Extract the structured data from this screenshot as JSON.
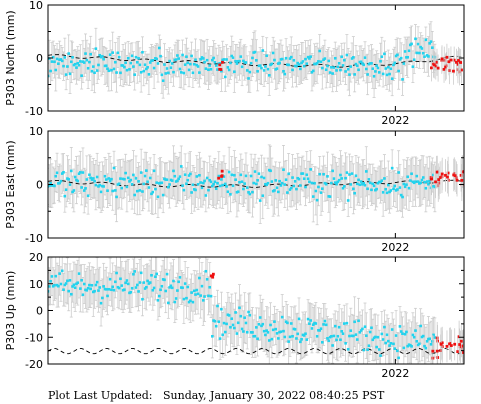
{
  "footer": {
    "label": "Plot Last Updated:",
    "timestamp": "Sunday, January 30, 2022 08:40:25 PST"
  },
  "colors": {
    "point": "#22d3ee",
    "recent_point": "#ee1111",
    "errorbar": "#cccccc",
    "model": "#000000",
    "frame": "#000000"
  },
  "chart_data": [
    {
      "type": "scatter",
      "ylabel": "P303 North (mm)",
      "ylim": [
        -10,
        10
      ],
      "yticks": [
        -10,
        0,
        10
      ],
      "x_label_tick": "2022",
      "series": [
        {
          "role": "daily",
          "style": "points-with-errorbars",
          "x_range": [
            0,
            0.93
          ],
          "y_mean": -1.2,
          "y_spread": 1.6,
          "level_shift": {
            "after_x": 0.86,
            "delta": 2.4
          },
          "errorbar_half": 3.2
        },
        {
          "role": "recent",
          "style": "points",
          "x_range": [
            0.92,
            1.0
          ],
          "y_mean": -1.0,
          "y_spread": 1.4
        },
        {
          "role": "model",
          "style": "dashed-line",
          "points": [
            [
              0,
              0.5
            ],
            [
              0.25,
              -0.5
            ],
            [
              0.5,
              -1.2
            ],
            [
              0.7,
              -1.5
            ],
            [
              0.85,
              -1.0
            ],
            [
              1.0,
              0.3
            ]
          ]
        }
      ]
    },
    {
      "type": "scatter",
      "ylabel": "P303 East (mm)",
      "ylim": [
        -10,
        10
      ],
      "yticks": [
        -10,
        0,
        10
      ],
      "x_label_tick": "2022",
      "series": [
        {
          "role": "daily",
          "style": "points-with-errorbars",
          "x_range": [
            0,
            0.93
          ],
          "y_mean": 0.3,
          "y_spread": 1.8,
          "errorbar_half": 3.8
        },
        {
          "role": "recent",
          "style": "points",
          "x_range": [
            0.92,
            1.0
          ],
          "y_mean": 1.6,
          "y_spread": 1.0
        },
        {
          "role": "model",
          "style": "dashed-line",
          "points": [
            [
              0,
              0.6
            ],
            [
              0.25,
              -0.2
            ],
            [
              0.5,
              -0.3
            ],
            [
              0.75,
              0.3
            ],
            [
              1.0,
              0.6
            ]
          ]
        }
      ]
    },
    {
      "type": "scatter",
      "ylabel": "P303 Up (mm)",
      "ylim": [
        -20,
        20
      ],
      "yticks": [
        -20,
        -10,
        0,
        10,
        20
      ],
      "x_label_tick": "2022",
      "series": [
        {
          "role": "daily",
          "style": "points-with-errorbars",
          "x_range": [
            0,
            0.93
          ],
          "y_mean": 9.0,
          "y_spread": 4.0,
          "step": {
            "at_x": 0.395,
            "to_mean": -4.0
          },
          "trend_after_step": -8.0,
          "errorbar_half": 7.5
        },
        {
          "role": "recent",
          "style": "points",
          "x_range": [
            0.92,
            1.0
          ],
          "y_mean": -14.0,
          "y_spread": 3.0
        },
        {
          "role": "model",
          "style": "dashed-line",
          "y_mean": -15.2,
          "amplitude": 1.0,
          "periods": 16
        }
      ]
    }
  ]
}
